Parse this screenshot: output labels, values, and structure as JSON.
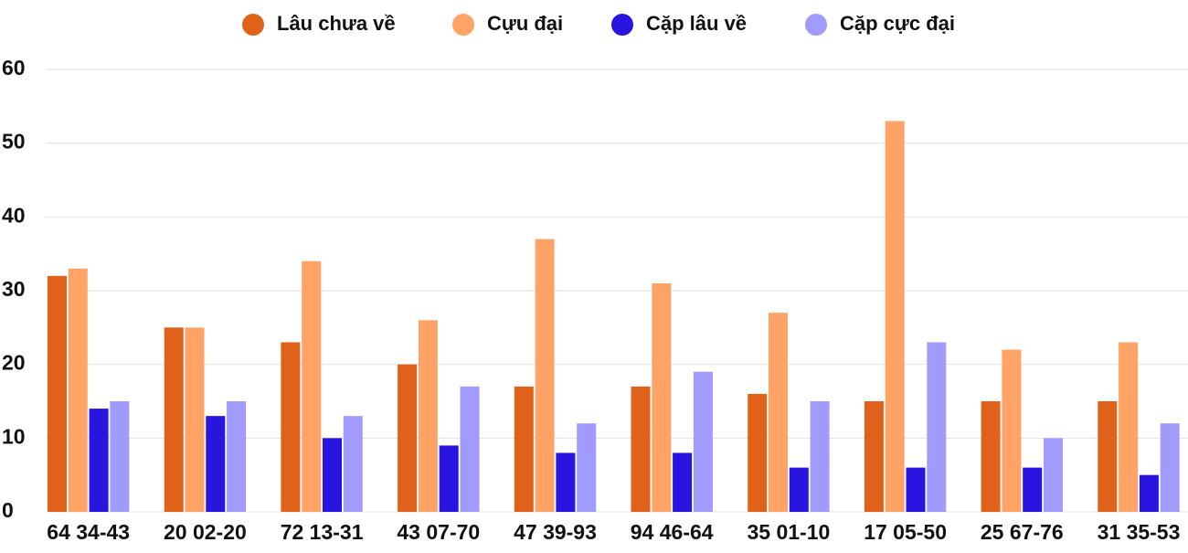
{
  "chart_data": {
    "type": "bar",
    "categories": [
      "64 34-43",
      "20 02-20",
      "72 13-31",
      "43 07-70",
      "47 39-93",
      "94 46-64",
      "35 01-10",
      "17 05-50",
      "25 67-76",
      "31 35-53"
    ],
    "series": [
      {
        "name": "Lâu chưa về",
        "color": "#e0621a",
        "values": [
          32,
          25,
          23,
          20,
          17,
          17,
          16,
          15,
          15,
          15
        ]
      },
      {
        "name": "Cựu đại",
        "color": "#ffa366",
        "values": [
          33,
          25,
          34,
          26,
          37,
          31,
          27,
          53,
          22,
          23
        ]
      },
      {
        "name": "Cặp lâu về",
        "color": "#2a14e0",
        "values": [
          14,
          13,
          10,
          9,
          8,
          8,
          6,
          6,
          6,
          5
        ]
      },
      {
        "name": "Cặp cực đại",
        "color": "#a29bfe",
        "values": [
          15,
          15,
          13,
          17,
          12,
          19,
          15,
          23,
          10,
          12
        ]
      }
    ],
    "ylim": [
      0,
      60
    ],
    "yticks": [
      0,
      10,
      20,
      30,
      40,
      50,
      60
    ],
    "grid": true,
    "legend": "top"
  }
}
